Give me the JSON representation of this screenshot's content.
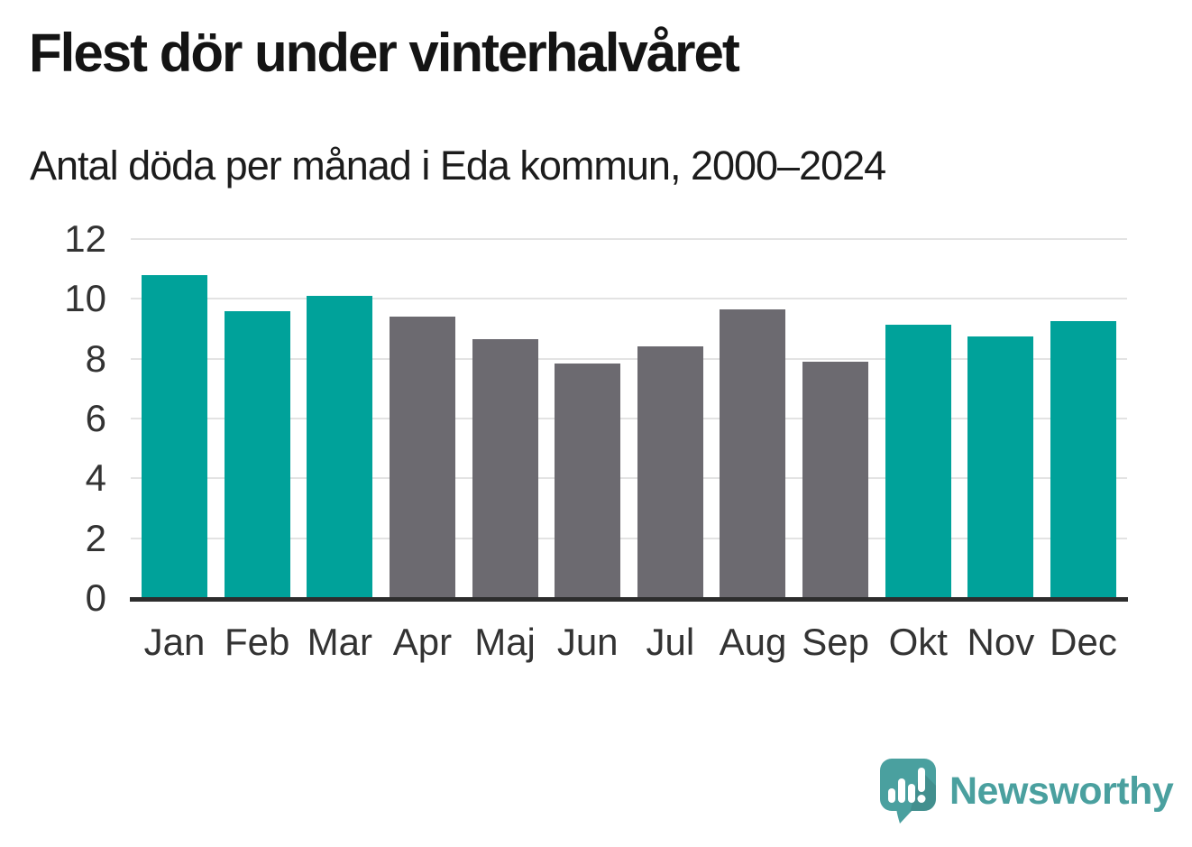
{
  "chart_data": {
    "type": "bar",
    "title": "Flest dör under vinterhalvåret",
    "subtitle": "Antal döda per månad i Eda kommun, 2000–2024",
    "categories": [
      "Jan",
      "Feb",
      "Mar",
      "Apr",
      "Maj",
      "Jun",
      "Jul",
      "Aug",
      "Sep",
      "Okt",
      "Nov",
      "Dec"
    ],
    "values": [
      10.8,
      9.6,
      10.1,
      9.4,
      8.65,
      7.85,
      8.4,
      9.65,
      7.9,
      9.15,
      8.75,
      9.25
    ],
    "highlighted_months": [
      "Jan",
      "Feb",
      "Mar",
      "Okt",
      "Nov",
      "Dec"
    ],
    "highlight_color": "#00a29a",
    "default_color": "#6c6a70",
    "xlabel": "",
    "ylabel": "",
    "yticks": [
      0,
      2,
      4,
      6,
      8,
      10,
      12
    ],
    "ylim": [
      0,
      12
    ],
    "grid": true,
    "legend": "none",
    "gridline_color": "#e3e3e3",
    "axis_line_color": "#2d2d2d",
    "tick_label_color": "#333333"
  },
  "footer": {
    "brand": "Newsworthy",
    "brand_color": "#4aa09f",
    "logo_icon": "speech-bubble-bar-chart-icon"
  }
}
